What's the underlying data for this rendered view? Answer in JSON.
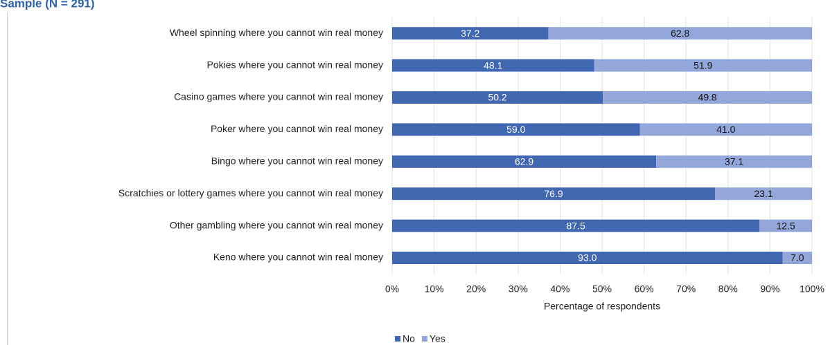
{
  "chart_data": {
    "type": "stacked-bar-horizontal",
    "title": "Sample (N = 291)",
    "x_label": "Percentage of respondents",
    "categories": [
      "Wheel spinning where you cannot win real money",
      "Pokies where you cannot win real money",
      "Casino games where you cannot win real money",
      "Poker where you cannot win real money",
      "Bingo where you cannot win real money",
      "Scratchies or lottery games where you cannot win real money",
      "Other gambling where you cannot win real money",
      "Keno where you cannot win real money"
    ],
    "series": [
      {
        "name": "No",
        "color": "#4167b1",
        "values": [
          37.2,
          48.1,
          50.2,
          59.0,
          62.9,
          76.9,
          87.5,
          93.0
        ],
        "value_labels": [
          "37.2",
          "48.1",
          "50.2",
          "59.0",
          "62.9",
          "76.9",
          "87.5",
          "93.0"
        ]
      },
      {
        "name": "Yes",
        "color": "#94a7da",
        "values": [
          62.8,
          51.9,
          49.8,
          41.0,
          37.1,
          23.1,
          12.5,
          7.0
        ],
        "value_labels": [
          "62.8",
          "51.9",
          "49.8",
          "41.0",
          "37.1",
          "23.1",
          "12.5",
          "7.0"
        ]
      }
    ],
    "xlim": [
      0,
      100
    ],
    "xticks": [
      {
        "value": 0,
        "label": "0%"
      },
      {
        "value": 10,
        "label": "10%"
      },
      {
        "value": 20,
        "label": "20%"
      },
      {
        "value": 30,
        "label": "30%"
      },
      {
        "value": 40,
        "label": "40%"
      },
      {
        "value": 50,
        "label": "50%"
      },
      {
        "value": 60,
        "label": "60%"
      },
      {
        "value": 70,
        "label": "70%"
      },
      {
        "value": 80,
        "label": "80%"
      },
      {
        "value": 90,
        "label": "90%"
      },
      {
        "value": 100,
        "label": "100%"
      }
    ],
    "grid": true
  }
}
